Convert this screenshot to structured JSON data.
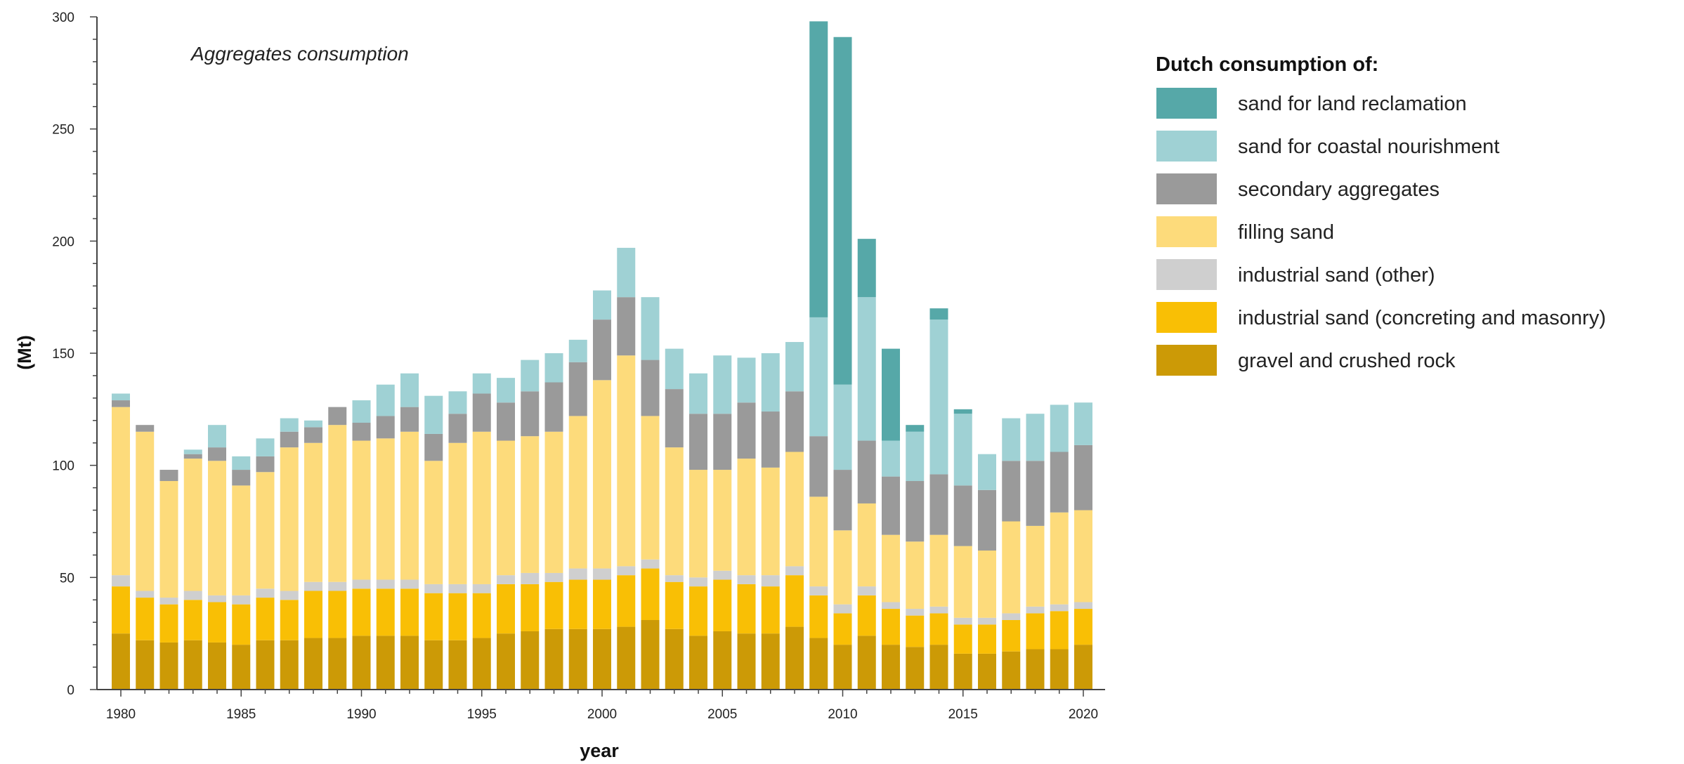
{
  "chart_data": {
    "type": "bar",
    "stacked": true,
    "title": "Aggregates consumption",
    "xlabel": "year",
    "ylabel": "(Mt)",
    "ylim": [
      0,
      300
    ],
    "yticks": [
      0,
      50,
      100,
      150,
      200,
      250,
      300
    ],
    "xticks": [
      "1980",
      "1985",
      "1990",
      "1995",
      "2000",
      "2005",
      "2010",
      "2015",
      "2020"
    ],
    "grid": false,
    "legend_title": "Dutch consumption of:",
    "legend_position": "right",
    "categories": [
      "1980",
      "1981",
      "1982",
      "1983",
      "1984",
      "1985",
      "1986",
      "1987",
      "1988",
      "1989",
      "1990",
      "1991",
      "1992",
      "1993",
      "1994",
      "1995",
      "1996",
      "1997",
      "1998",
      "1999",
      "2000",
      "2001",
      "2002",
      "2003",
      "2004",
      "2005",
      "2006",
      "2007",
      "2008",
      "2009",
      "2010",
      "2011",
      "2012",
      "2013",
      "2014",
      "2015",
      "2016",
      "2017",
      "2018",
      "2019",
      "2020"
    ],
    "series": [
      {
        "name": "gravel and crushed rock",
        "color": "#cc9a06",
        "values": [
          25,
          22,
          21,
          22,
          21,
          20,
          22,
          22,
          23,
          23,
          24,
          24,
          24,
          22,
          22,
          23,
          25,
          26,
          27,
          27,
          27,
          28,
          31,
          27,
          24,
          26,
          25,
          25,
          28,
          23,
          20,
          24,
          20,
          19,
          20,
          16,
          16,
          17,
          18,
          18,
          20
        ]
      },
      {
        "name": "industrial sand (concreting and masonry)",
        "color": "#f9bf05",
        "values": [
          21,
          19,
          17,
          18,
          18,
          18,
          19,
          18,
          21,
          21,
          21,
          21,
          21,
          21,
          21,
          20,
          22,
          21,
          21,
          22,
          22,
          23,
          23,
          21,
          22,
          23,
          22,
          21,
          23,
          19,
          14,
          18,
          16,
          14,
          14,
          13,
          13,
          14,
          16,
          17,
          16
        ]
      },
      {
        "name": "industrial sand (other)",
        "color": "#cfcfcf",
        "values": [
          5,
          3,
          3,
          4,
          3,
          4,
          4,
          4,
          4,
          4,
          4,
          4,
          4,
          4,
          4,
          4,
          4,
          5,
          4,
          5,
          5,
          4,
          4,
          3,
          4,
          4,
          4,
          5,
          4,
          4,
          4,
          4,
          3,
          3,
          3,
          3,
          3,
          3,
          3,
          3,
          3
        ]
      },
      {
        "name": "filling sand",
        "color": "#fddb7b",
        "values": [
          75,
          71,
          52,
          59,
          60,
          49,
          52,
          64,
          62,
          70,
          62,
          63,
          66,
          55,
          63,
          68,
          60,
          61,
          63,
          68,
          84,
          94,
          64,
          57,
          48,
          45,
          52,
          48,
          51,
          40,
          33,
          37,
          30,
          30,
          32,
          32,
          30,
          41,
          36,
          41,
          41
        ]
      },
      {
        "name": "secondary aggregates",
        "color": "#9a9a9a",
        "values": [
          3,
          3,
          5,
          2,
          6,
          7,
          7,
          7,
          7,
          8,
          8,
          10,
          11,
          12,
          13,
          17,
          17,
          20,
          22,
          24,
          27,
          26,
          25,
          26,
          25,
          25,
          25,
          25,
          27,
          27,
          27,
          28,
          26,
          27,
          27,
          27,
          27,
          27,
          29,
          27,
          29
        ]
      },
      {
        "name": "sand for coastal nourishment",
        "color": "#9fd1d4",
        "values": [
          3,
          0,
          0,
          2,
          10,
          6,
          8,
          6,
          3,
          0,
          10,
          14,
          15,
          17,
          10,
          9,
          11,
          14,
          13,
          10,
          13,
          22,
          28,
          18,
          18,
          26,
          20,
          26,
          22,
          53,
          38,
          64,
          16,
          22,
          69,
          32,
          16,
          19,
          21,
          21,
          19
        ]
      },
      {
        "name": "sand for land reclamation",
        "color": "#56a8a8",
        "values": [
          0,
          0,
          0,
          0,
          0,
          0,
          0,
          0,
          0,
          0,
          0,
          0,
          0,
          0,
          0,
          0,
          0,
          0,
          0,
          0,
          0,
          0,
          0,
          0,
          0,
          0,
          0,
          0,
          0,
          132,
          155,
          26,
          41,
          3,
          5,
          2,
          0,
          0,
          0,
          0,
          0
        ]
      }
    ]
  }
}
